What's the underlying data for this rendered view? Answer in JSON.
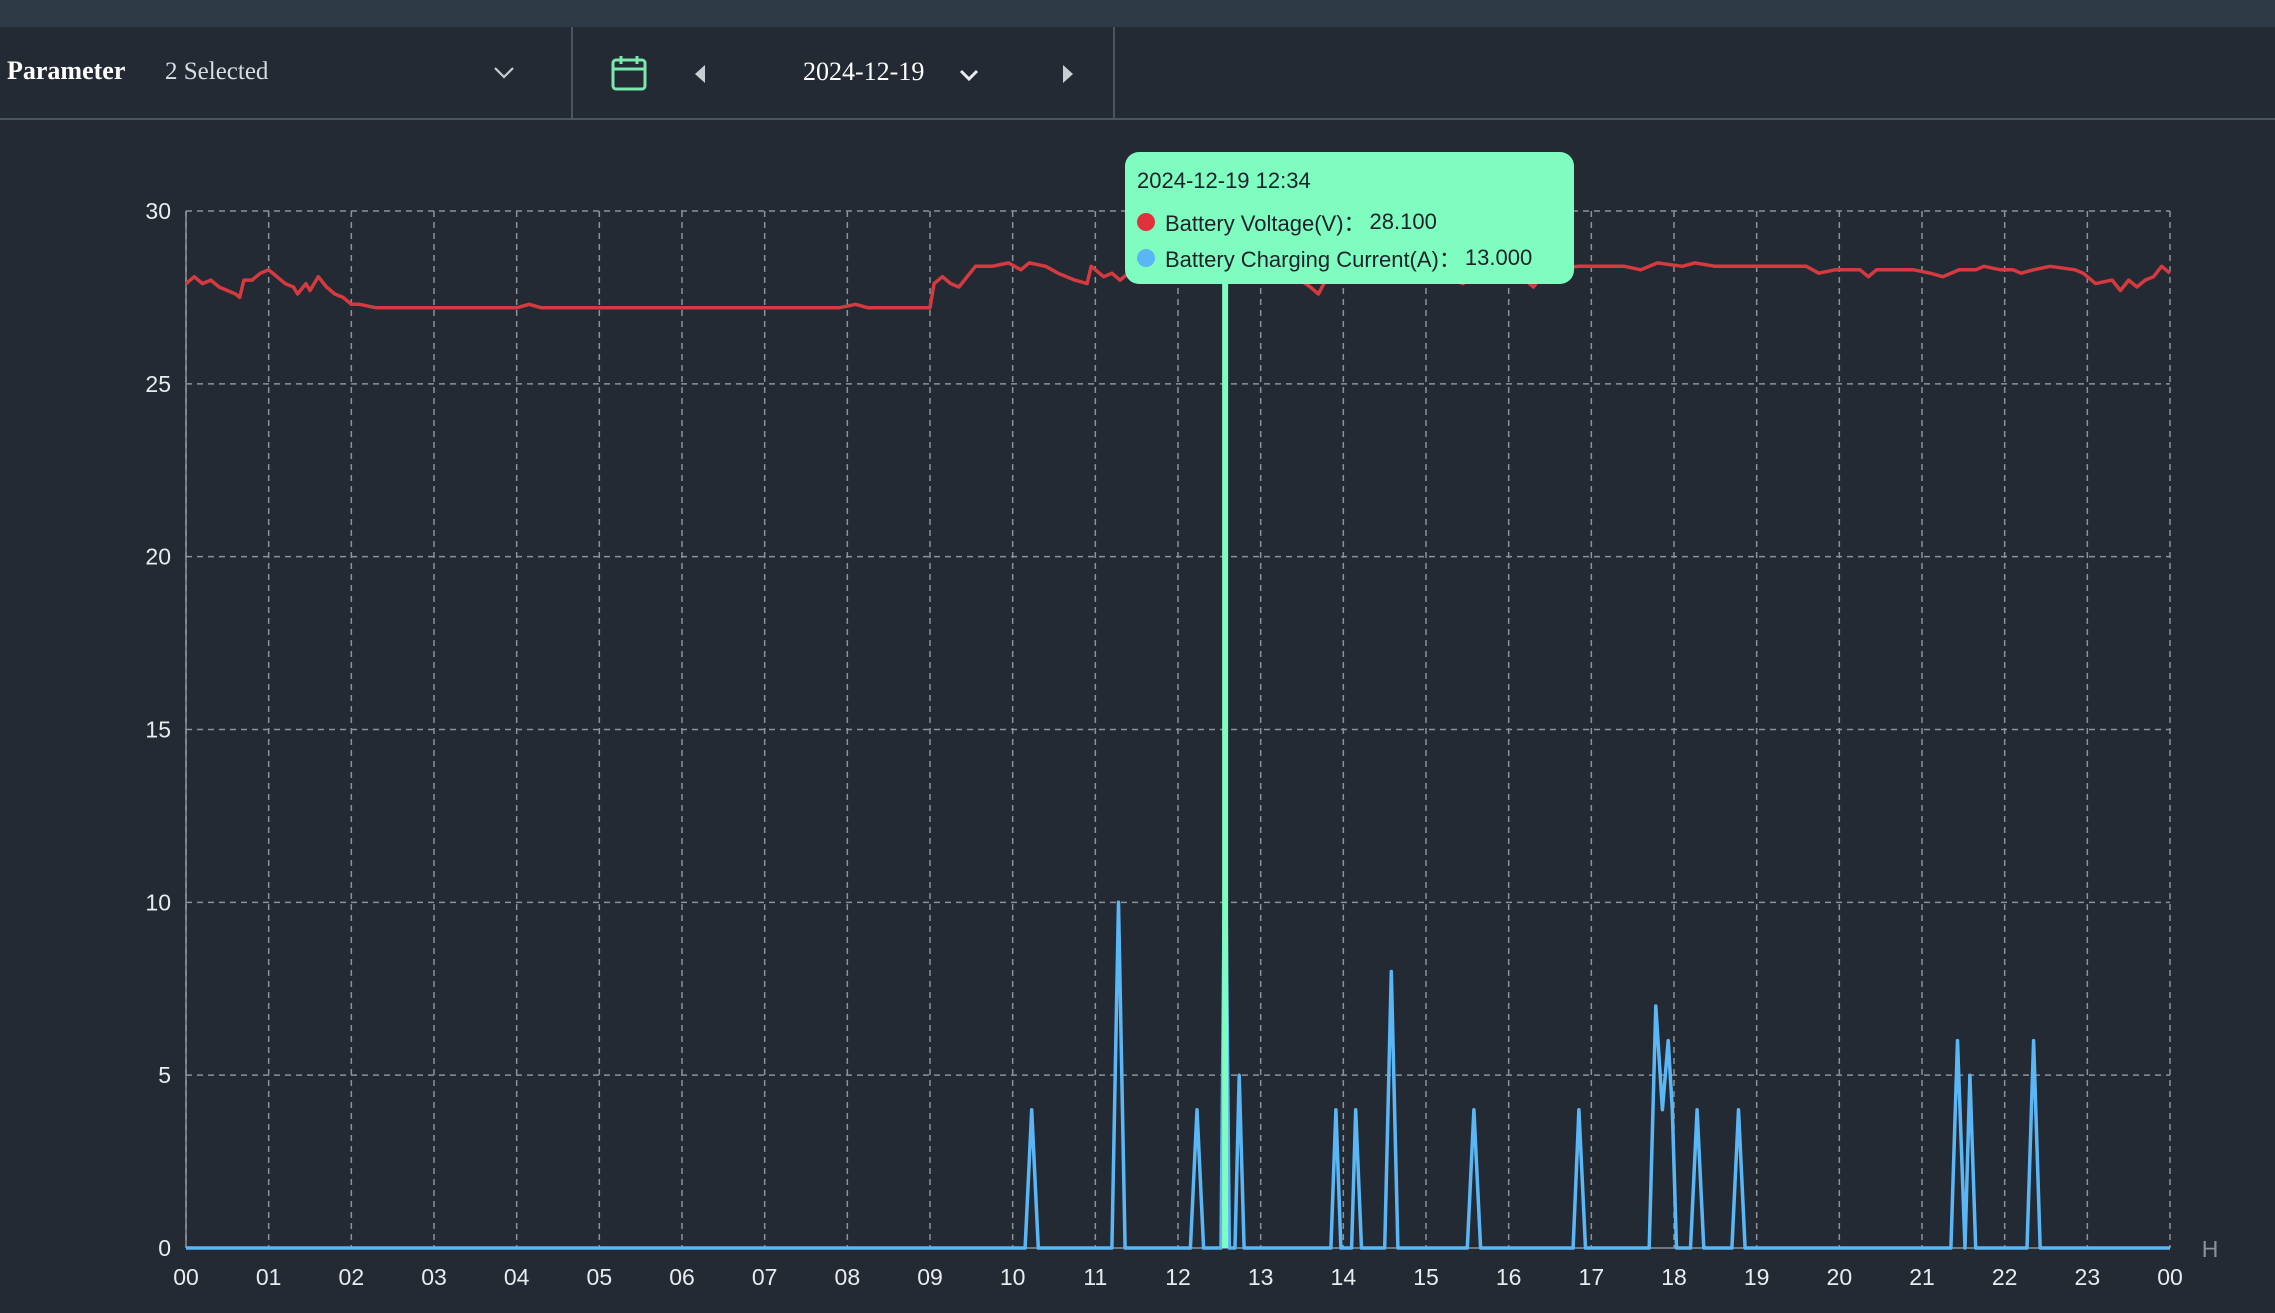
{
  "toolbar": {
    "parameter_label": "Parameter",
    "parameter_value": "2 Selected",
    "date_value": "2024-12-19",
    "icons": {
      "parameter_dropdown": "chevron-down-icon",
      "calendar": "calendar-icon",
      "previous": "caret-left-icon",
      "date_dropdown": "chevron-down-icon",
      "next": "caret-right-icon"
    },
    "calendar_color": "#7ce8b0"
  },
  "tooltip": {
    "time": "2024-12-19 12:34",
    "rows": [
      {
        "label": "Battery Voltage(V)：",
        "value": "28.100",
        "color": "#e0323c"
      },
      {
        "label": "Battery Charging Current(A)：",
        "value": "13.000",
        "color": "#5bb6f5"
      }
    ]
  },
  "chart_data": {
    "type": "line",
    "x_unit": "H",
    "x_ticks": [
      "00",
      "01",
      "02",
      "03",
      "04",
      "05",
      "06",
      "07",
      "08",
      "09",
      "10",
      "11",
      "12",
      "13",
      "14",
      "15",
      "16",
      "17",
      "18",
      "19",
      "20",
      "21",
      "22",
      "23",
      "00"
    ],
    "xlim": [
      0,
      24
    ],
    "ylim": [
      0,
      30
    ],
    "y_ticks": [
      0,
      5,
      10,
      15,
      20,
      25,
      30
    ],
    "grid": true,
    "cursor_x": 12.57,
    "cursor_color": "#7ffcc0",
    "series": [
      {
        "name": "Battery Voltage(V)",
        "color": "#d43a3f",
        "points": [
          [
            0,
            27.9
          ],
          [
            0.1,
            28.1
          ],
          [
            0.2,
            27.9
          ],
          [
            0.3,
            28.0
          ],
          [
            0.4,
            27.8
          ],
          [
            0.5,
            27.7
          ],
          [
            0.6,
            27.6
          ],
          [
            0.65,
            27.5
          ],
          [
            0.7,
            28.0
          ],
          [
            0.8,
            28.0
          ],
          [
            0.9,
            28.2
          ],
          [
            1.0,
            28.3
          ],
          [
            1.1,
            28.1
          ],
          [
            1.2,
            27.9
          ],
          [
            1.3,
            27.8
          ],
          [
            1.35,
            27.6
          ],
          [
            1.45,
            27.9
          ],
          [
            1.5,
            27.7
          ],
          [
            1.6,
            28.1
          ],
          [
            1.7,
            27.8
          ],
          [
            1.8,
            27.6
          ],
          [
            1.9,
            27.5
          ],
          [
            2.0,
            27.3
          ],
          [
            2.1,
            27.3
          ],
          [
            2.3,
            27.2
          ],
          [
            2.6,
            27.2
          ],
          [
            3.0,
            27.2
          ],
          [
            3.5,
            27.2
          ],
          [
            4.0,
            27.2
          ],
          [
            4.15,
            27.3
          ],
          [
            4.3,
            27.2
          ],
          [
            5.0,
            27.2
          ],
          [
            6.0,
            27.2
          ],
          [
            7.0,
            27.2
          ],
          [
            7.9,
            27.2
          ],
          [
            8.1,
            27.3
          ],
          [
            8.25,
            27.2
          ],
          [
            9.0,
            27.2
          ],
          [
            9.05,
            27.9
          ],
          [
            9.15,
            28.1
          ],
          [
            9.25,
            27.9
          ],
          [
            9.35,
            27.8
          ],
          [
            9.55,
            28.4
          ],
          [
            9.75,
            28.4
          ],
          [
            9.95,
            28.5
          ],
          [
            10.1,
            28.3
          ],
          [
            10.2,
            28.5
          ],
          [
            10.4,
            28.4
          ],
          [
            10.55,
            28.2
          ],
          [
            10.75,
            28.0
          ],
          [
            10.9,
            27.9
          ],
          [
            10.95,
            28.4
          ],
          [
            11.1,
            28.1
          ],
          [
            11.2,
            28.2
          ],
          [
            11.3,
            28.0
          ],
          [
            11.45,
            28.3
          ],
          [
            12.57,
            28.1
          ],
          [
            13.3,
            28.3
          ],
          [
            13.6,
            27.8
          ],
          [
            13.7,
            27.6
          ],
          [
            13.85,
            28.3
          ],
          [
            14.3,
            28.4
          ],
          [
            15.2,
            28.1
          ],
          [
            15.45,
            27.9
          ],
          [
            15.6,
            28.3
          ],
          [
            16.1,
            28.2
          ],
          [
            16.3,
            27.8
          ],
          [
            16.45,
            28.3
          ],
          [
            16.85,
            28.4
          ],
          [
            17.4,
            28.4
          ],
          [
            17.6,
            28.3
          ],
          [
            17.8,
            28.5
          ],
          [
            18.1,
            28.4
          ],
          [
            18.25,
            28.5
          ],
          [
            18.5,
            28.4
          ],
          [
            19.1,
            28.4
          ],
          [
            19.6,
            28.4
          ],
          [
            19.75,
            28.2
          ],
          [
            19.95,
            28.3
          ],
          [
            20.25,
            28.3
          ],
          [
            20.35,
            28.1
          ],
          [
            20.45,
            28.3
          ],
          [
            20.9,
            28.3
          ],
          [
            21.1,
            28.2
          ],
          [
            21.25,
            28.1
          ],
          [
            21.45,
            28.3
          ],
          [
            21.65,
            28.3
          ],
          [
            21.75,
            28.4
          ],
          [
            21.95,
            28.3
          ],
          [
            22.1,
            28.3
          ],
          [
            22.2,
            28.2
          ],
          [
            22.35,
            28.3
          ],
          [
            22.55,
            28.4
          ],
          [
            22.85,
            28.3
          ],
          [
            22.95,
            28.2
          ],
          [
            23.1,
            27.9
          ],
          [
            23.3,
            28.0
          ],
          [
            23.4,
            27.7
          ],
          [
            23.5,
            28.0
          ],
          [
            23.6,
            27.8
          ],
          [
            23.7,
            28.0
          ],
          [
            23.8,
            28.1
          ],
          [
            23.9,
            28.4
          ],
          [
            24.0,
            28.2
          ]
        ]
      },
      {
        "name": "Battery Charging Current(A)",
        "color": "#5bb6f5",
        "points": [
          [
            0,
            0
          ],
          [
            10.15,
            0
          ],
          [
            10.23,
            4
          ],
          [
            10.31,
            0
          ],
          [
            11.2,
            0
          ],
          [
            11.28,
            10
          ],
          [
            11.36,
            0
          ],
          [
            12.15,
            0
          ],
          [
            12.23,
            4
          ],
          [
            12.31,
            0
          ],
          [
            12.52,
            0
          ],
          [
            12.57,
            13
          ],
          [
            12.62,
            0
          ],
          [
            12.69,
            0
          ],
          [
            12.74,
            5
          ],
          [
            12.8,
            0
          ],
          [
            13.85,
            0
          ],
          [
            13.91,
            4
          ],
          [
            13.97,
            0
          ],
          [
            14.1,
            0
          ],
          [
            14.15,
            4
          ],
          [
            14.22,
            0
          ],
          [
            14.5,
            0
          ],
          [
            14.58,
            8
          ],
          [
            14.66,
            0
          ],
          [
            15.5,
            0
          ],
          [
            15.58,
            4
          ],
          [
            15.66,
            0
          ],
          [
            16.78,
            0
          ],
          [
            16.85,
            4
          ],
          [
            16.93,
            0
          ],
          [
            17.7,
            0
          ],
          [
            17.78,
            7
          ],
          [
            17.86,
            4
          ],
          [
            17.93,
            6
          ],
          [
            17.98,
            4
          ],
          [
            18.03,
            0
          ],
          [
            18.2,
            0
          ],
          [
            18.28,
            4
          ],
          [
            18.36,
            0
          ],
          [
            18.7,
            0
          ],
          [
            18.78,
            4
          ],
          [
            18.86,
            0
          ],
          [
            21.35,
            0
          ],
          [
            21.43,
            6
          ],
          [
            21.52,
            0
          ],
          [
            21.58,
            5
          ],
          [
            21.65,
            0
          ],
          [
            22.27,
            0
          ],
          [
            22.35,
            6
          ],
          [
            22.43,
            0
          ],
          [
            24,
            0
          ]
        ]
      }
    ]
  }
}
